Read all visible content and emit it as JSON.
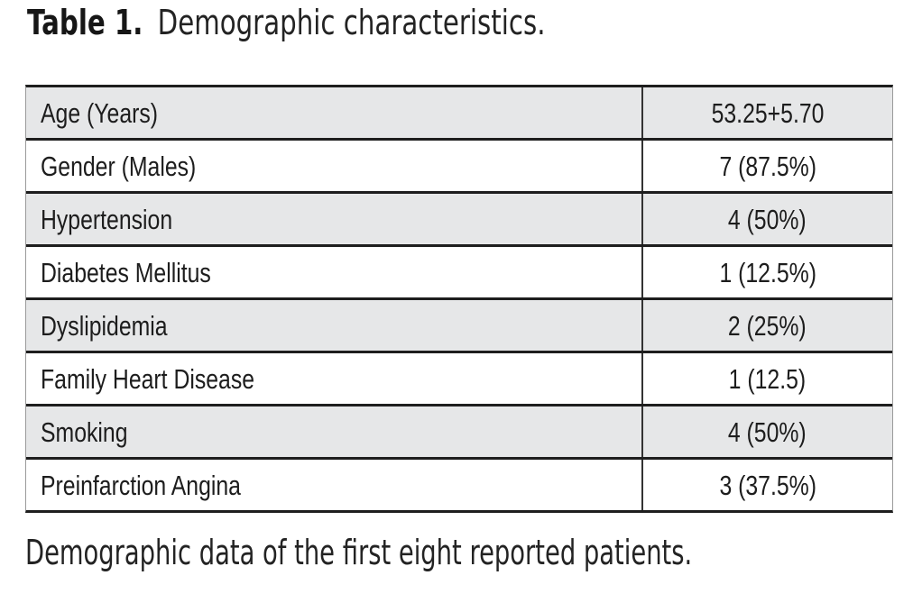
{
  "title": {
    "label": "Table 1.",
    "text": "Demographic characteristics."
  },
  "table": {
    "rows": [
      {
        "label": "Age (Years)",
        "value": "53.25+5.70"
      },
      {
        "label": "Gender (Males)",
        "value": "7 (87.5%)"
      },
      {
        "label": "Hypertension",
        "value": "4 (50%)"
      },
      {
        "label": "Diabetes Mellitus",
        "value": "1 (12.5%)"
      },
      {
        "label": "Dyslipidemia",
        "value": "2 (25%)"
      },
      {
        "label": "Family Heart Disease",
        "value": "1 (12.5)"
      },
      {
        "label": "Smoking",
        "value": "4 (50%)"
      },
      {
        "label": "Preinfarction Angina",
        "value": "3 (37.5%)"
      }
    ]
  },
  "caption": {
    "text": "Demographic data of the first eight reported patients."
  },
  "colors": {
    "page_bg": "#ffffff",
    "row_shade": "#e6e7e8",
    "grid_line": "#1e1e1e",
    "cell_text": "#1d1d1d",
    "heading_text": "#232323"
  }
}
